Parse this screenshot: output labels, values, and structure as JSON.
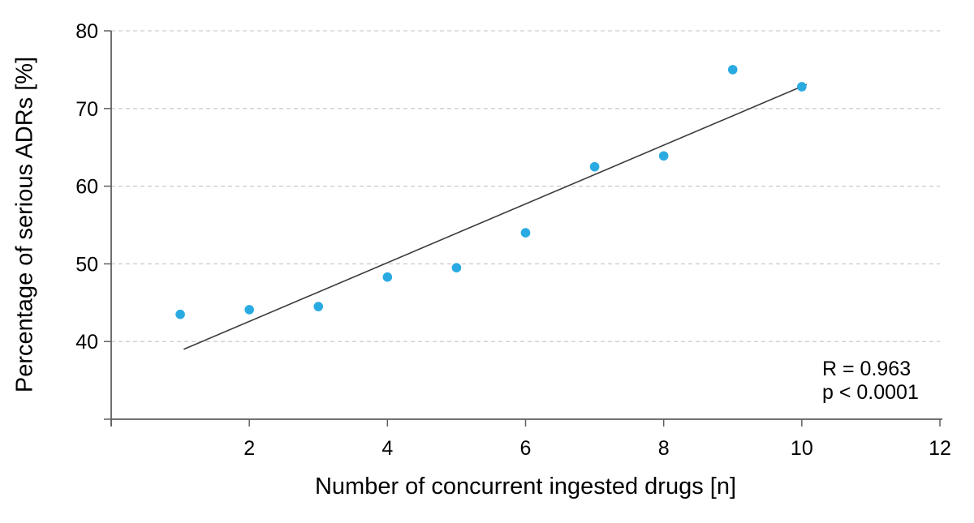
{
  "chart_data": {
    "type": "scatter",
    "title": "",
    "xlabel": "Number of concurrent ingested drugs [n]",
    "ylabel": "Percentage of serious ADRs [%]",
    "x": [
      1,
      2,
      3,
      4,
      5,
      6,
      7,
      8,
      9,
      10
    ],
    "y": [
      43.5,
      44.1,
      44.5,
      48.3,
      49.5,
      54.0,
      62.5,
      63.9,
      75.0,
      72.8
    ],
    "series_name": "Percentage of serious ADRs",
    "xlim": [
      0,
      12
    ],
    "ylim": [
      30,
      80
    ],
    "x_axis": {
      "ticks": [
        0,
        2,
        4,
        6,
        8,
        10,
        12
      ],
      "labeled": [
        2,
        4,
        6,
        8,
        10,
        12
      ]
    },
    "y_axis": {
      "ticks": [
        30,
        40,
        50,
        60,
        70,
        80
      ],
      "labeled": [
        40,
        50,
        60,
        70,
        80
      ]
    },
    "grid": "horizontal-dashed",
    "legend": "none",
    "trendline": {
      "x1": 1.05,
      "y1": 39.0,
      "x2": 10.07,
      "y2": 73.1
    },
    "annotation": {
      "r_label": "R = 0.963",
      "p_label": "p < 0.0001"
    },
    "colors": {
      "marker": "#29abe2",
      "trendline": "#3c3c3c",
      "axis": "#5f5f5f",
      "gridline": "#c3c3c3",
      "text": "#000000"
    }
  }
}
